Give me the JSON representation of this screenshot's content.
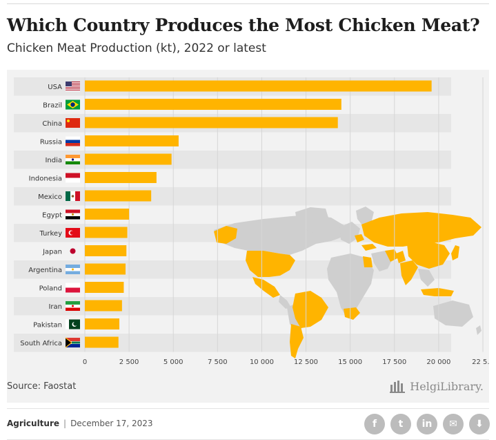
{
  "header": {
    "title": "Which Country Produces the Most Chicken Meat?",
    "subtitle": "Chicken Meat Production (kt), 2022 or latest"
  },
  "chart_data": {
    "type": "bar",
    "orientation": "horizontal",
    "title": "Which Country Produces the Most Chicken Meat?",
    "subtitle": "Chicken Meat Production (kt), 2022 or latest",
    "categories": [
      "USA",
      "Brazil",
      "China",
      "Russia",
      "India",
      "Indonesia",
      "Mexico",
      "Egypt",
      "Turkey",
      "Japan",
      "Argentina",
      "Poland",
      "Iran",
      "Pakistan",
      "South Africa"
    ],
    "values": [
      19600,
      14500,
      14300,
      5300,
      4900,
      4050,
      3750,
      2500,
      2400,
      2350,
      2300,
      2200,
      2100,
      1950,
      1900
    ],
    "xlim": [
      0,
      22500
    ],
    "x_ticks": [
      "0",
      "2 500",
      "5 000",
      "7 500",
      "10 000",
      "12 500",
      "15 000",
      "17 500",
      "20 000",
      "22 5..."
    ],
    "bar_color": "#ffb400",
    "grid": true,
    "background_map": "world map highlighting the listed countries"
  },
  "flag_icons": [
    "usa-flag-icon",
    "brazil-flag-icon",
    "china-flag-icon",
    "russia-flag-icon",
    "india-flag-icon",
    "indonesia-flag-icon",
    "mexico-flag-icon",
    "egypt-flag-icon",
    "turkey-flag-icon",
    "japan-flag-icon",
    "argentina-flag-icon",
    "poland-flag-icon",
    "iran-flag-icon",
    "pakistan-flag-icon",
    "south-africa-flag-icon"
  ],
  "colors": {
    "bar": "#ffb400",
    "panel": "#f2f2f2",
    "map_highlight": "#ffb400",
    "map_other": "#cfcfcf"
  },
  "source": "Source: Faostat",
  "brand": "HelgiLibrary.",
  "footer": {
    "category": "Agriculture",
    "separator": "|",
    "date": "December 17, 2023"
  },
  "share_buttons": [
    {
      "name": "facebook-icon",
      "glyph": "f"
    },
    {
      "name": "twitter-icon",
      "glyph": "t"
    },
    {
      "name": "linkedin-icon",
      "glyph": "in"
    },
    {
      "name": "email-icon",
      "glyph": "✉"
    },
    {
      "name": "cloud-download-icon",
      "glyph": "⬇"
    }
  ]
}
